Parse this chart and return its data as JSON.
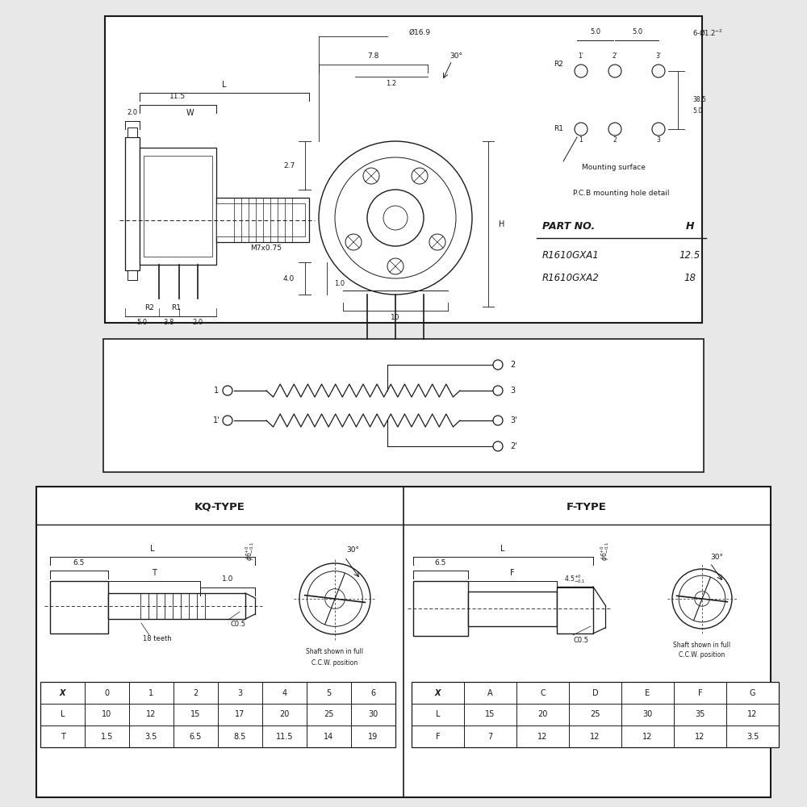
{
  "bg_color": "#e8e8e8",
  "panel_color": "#ffffff",
  "line_color": "#1a1a1a",
  "kq_headers": [
    "X",
    "0",
    "1",
    "2",
    "3",
    "4",
    "5",
    "6"
  ],
  "kq_row1": [
    "L",
    "10",
    "12",
    "15",
    "17",
    "20",
    "25",
    "30"
  ],
  "kq_row2": [
    "T",
    "1.5",
    "3.5",
    "6.5",
    "8.5",
    "11.5",
    "14",
    "19"
  ],
  "f_headers": [
    "X",
    "A",
    "C",
    "D",
    "E",
    "F",
    "G"
  ],
  "f_row1": [
    "L",
    "15",
    "20",
    "25",
    "30",
    "35",
    "12"
  ],
  "f_row2": [
    "F",
    "7",
    "12",
    "12",
    "12",
    "12",
    "3.5"
  ]
}
